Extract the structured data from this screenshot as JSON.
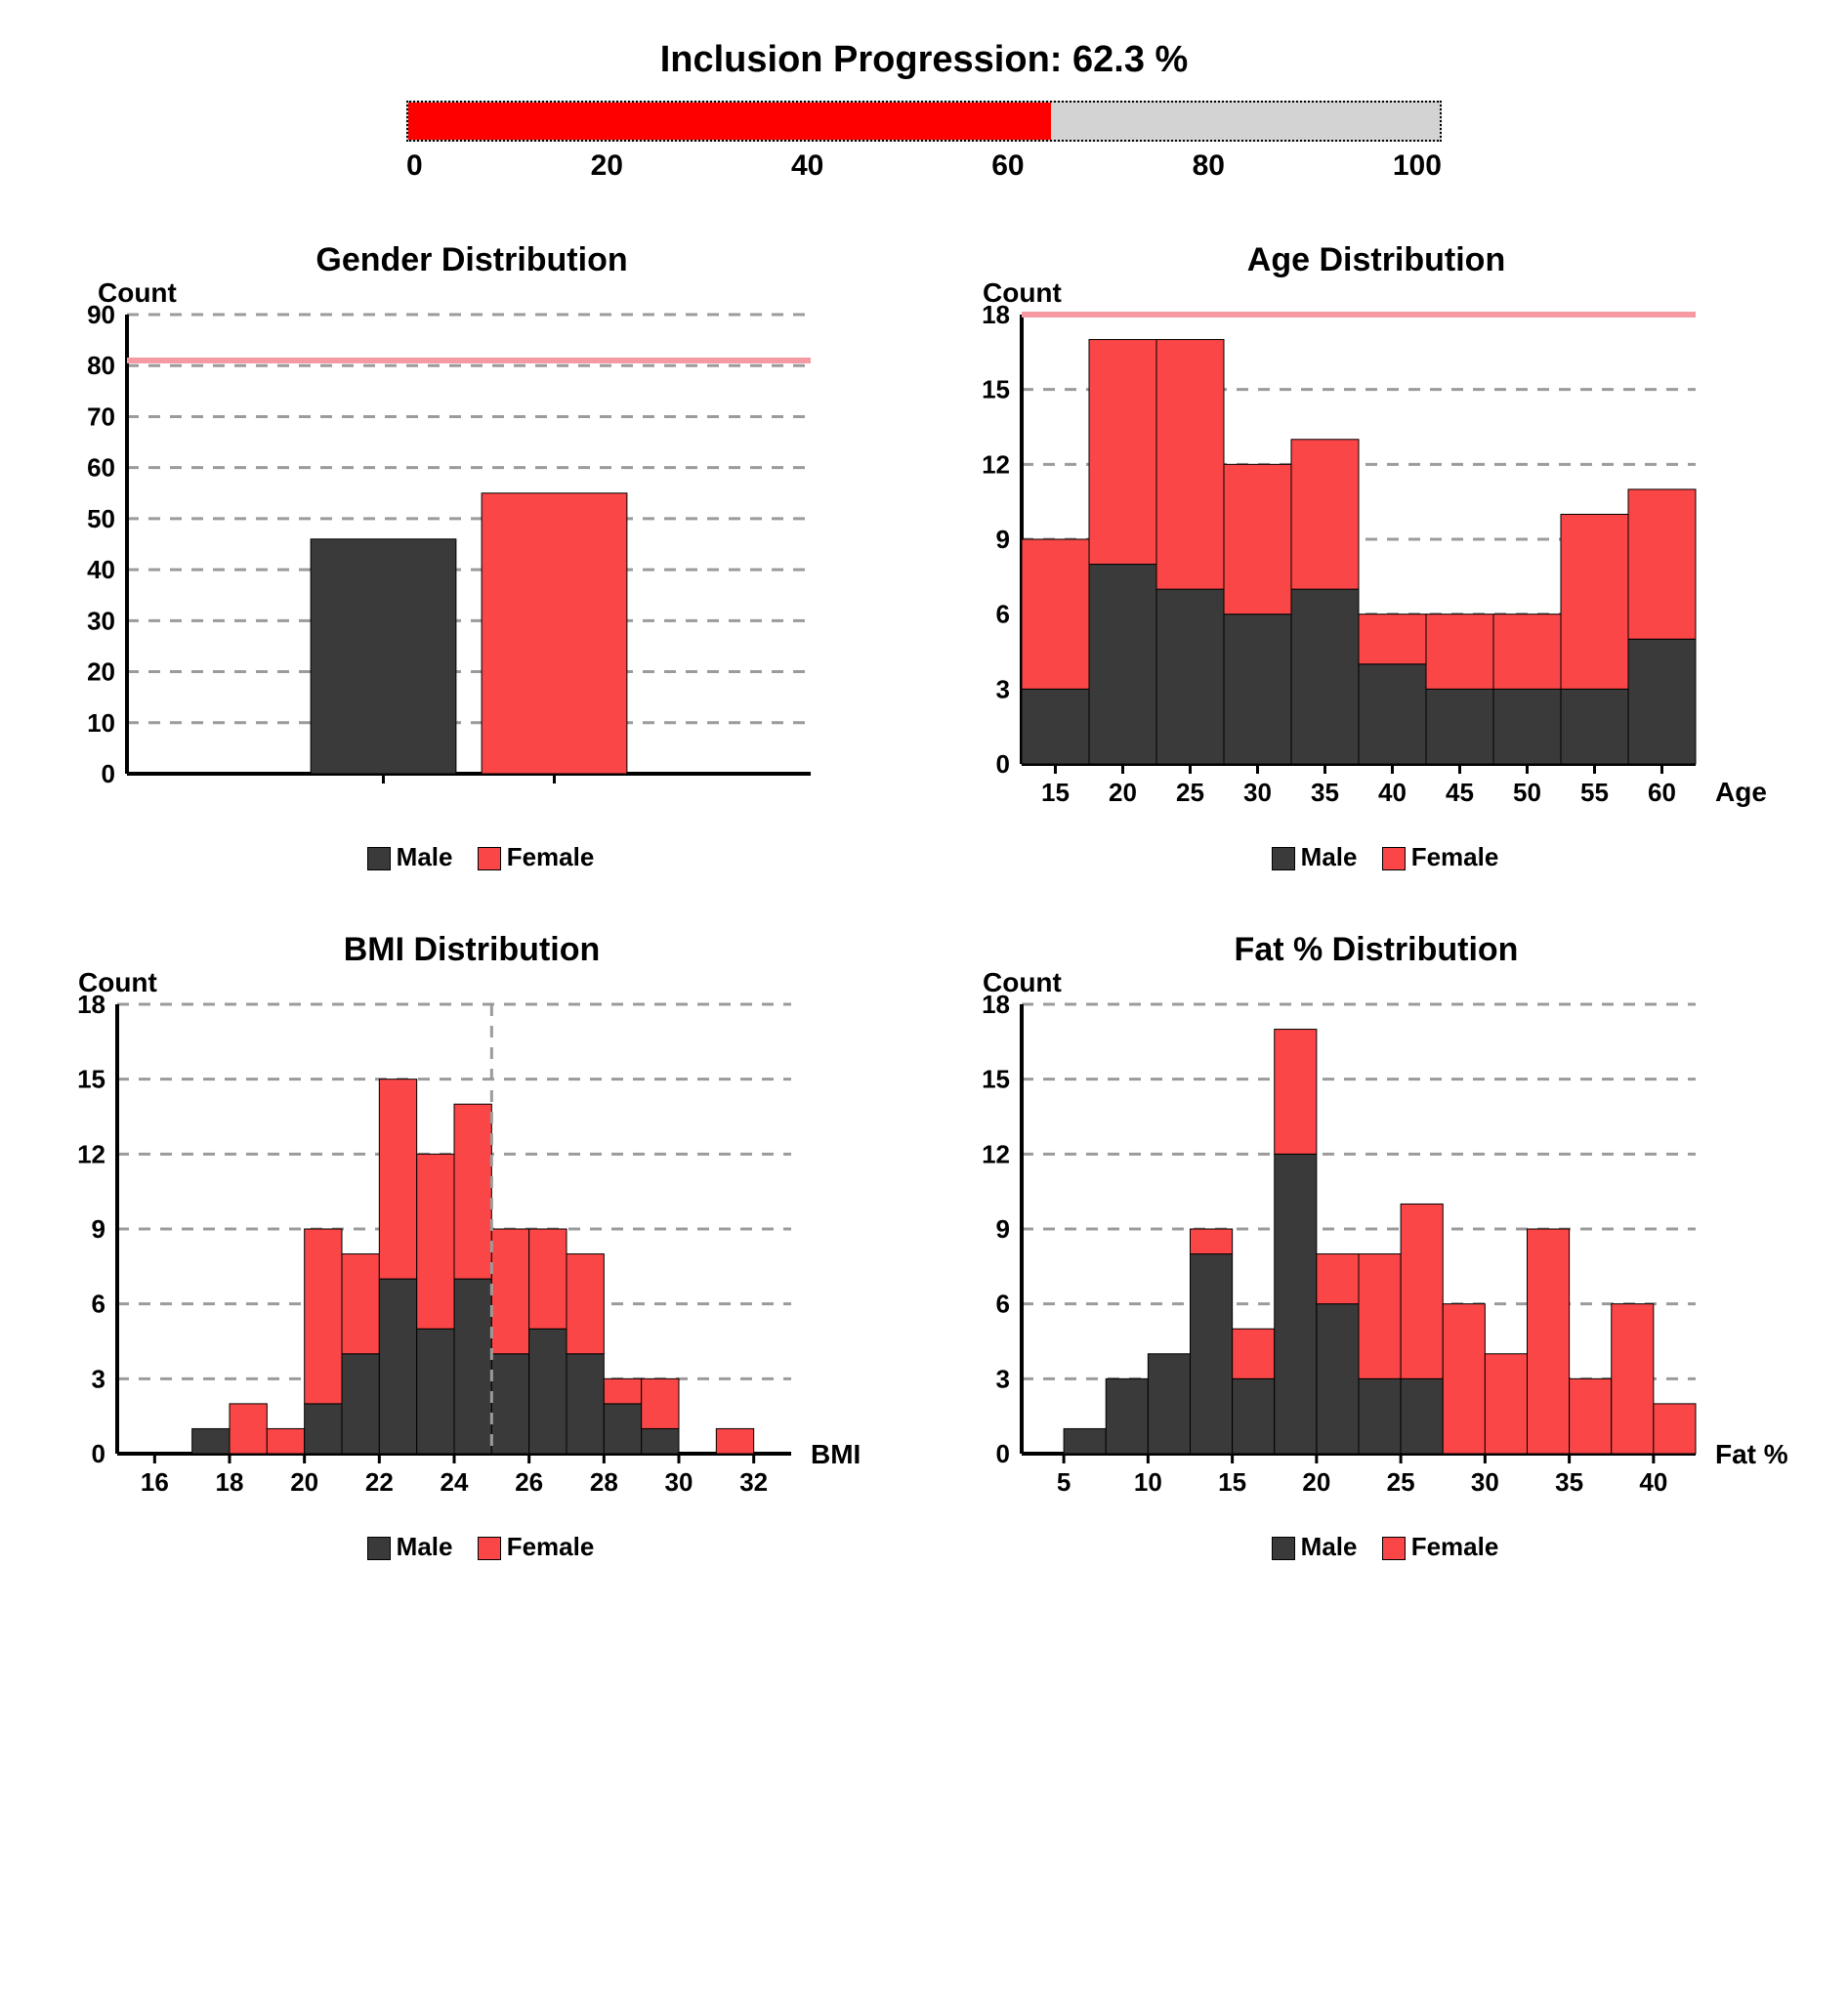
{
  "title": "Inclusion Progression: 62.3 %",
  "progress": {
    "value": 62.3,
    "bar_color": "#ff0000",
    "track_color": "#d3d3d3",
    "border_style": "dotted",
    "ticks": [
      "0",
      "20",
      "40",
      "60",
      "80",
      "100"
    ]
  },
  "colors": {
    "male": "#3a3a3a",
    "female": "#fa4646",
    "grid": "#9b9b9b",
    "target_line": "#f59aa3",
    "axis": "#000000",
    "background": "#ffffff"
  },
  "legend": {
    "male_label": "Male",
    "female_label": "Female"
  },
  "gender_chart": {
    "title": "Gender Distribution",
    "ylabel": "Count",
    "ylim": [
      0,
      90
    ],
    "ytick_step": 10,
    "target_line": 81,
    "bars": [
      {
        "label": "Male",
        "value": 46,
        "color": "#3a3a3a"
      },
      {
        "label": "Female",
        "value": 55,
        "color": "#fa4646"
      }
    ]
  },
  "age_chart": {
    "title": "Age Distribution",
    "ylabel": "Count",
    "xlabel": "Age",
    "ylim": [
      0,
      18
    ],
    "ytick_step": 3,
    "target_line": 18,
    "bins": [
      "15",
      "20",
      "25",
      "30",
      "35",
      "40",
      "45",
      "50",
      "55",
      "60"
    ],
    "male": [
      3,
      8,
      7,
      6,
      7,
      4,
      3,
      3,
      3,
      5
    ],
    "female": [
      6,
      9,
      10,
      6,
      6,
      2,
      3,
      3,
      7,
      6
    ]
  },
  "bmi_chart": {
    "title": "BMI Distribution",
    "ylabel": "Count",
    "xlabel": "BMI",
    "ylim": [
      0,
      18
    ],
    "ytick_step": 3,
    "vline_x": 25,
    "x_start": 15,
    "x_end": 33,
    "x_tick_start": 16,
    "x_tick_step": 2,
    "bin_width": 1,
    "male": [
      0,
      0,
      1,
      0,
      0,
      2,
      4,
      7,
      5,
      7,
      4,
      5,
      4,
      2,
      1,
      0,
      0,
      0
    ],
    "female": [
      0,
      0,
      0,
      2,
      1,
      7,
      4,
      8,
      7,
      7,
      5,
      4,
      4,
      1,
      2,
      0,
      1,
      0
    ]
  },
  "fat_chart": {
    "title": "Fat % Distribution",
    "ylabel": "Count",
    "xlabel": "Fat %",
    "ylim": [
      0,
      18
    ],
    "ytick_step": 3,
    "x_start": 2.5,
    "x_end": 42.5,
    "x_tick_start": 5,
    "x_tick_step": 5,
    "bin_width": 2.5,
    "male": [
      0,
      1,
      3,
      4,
      8,
      3,
      12,
      6,
      3,
      3,
      0,
      0,
      0,
      0,
      0,
      0
    ],
    "female": [
      0,
      0,
      0,
      0,
      1,
      2,
      5,
      2,
      5,
      7,
      6,
      4,
      9,
      3,
      6,
      2
    ]
  }
}
